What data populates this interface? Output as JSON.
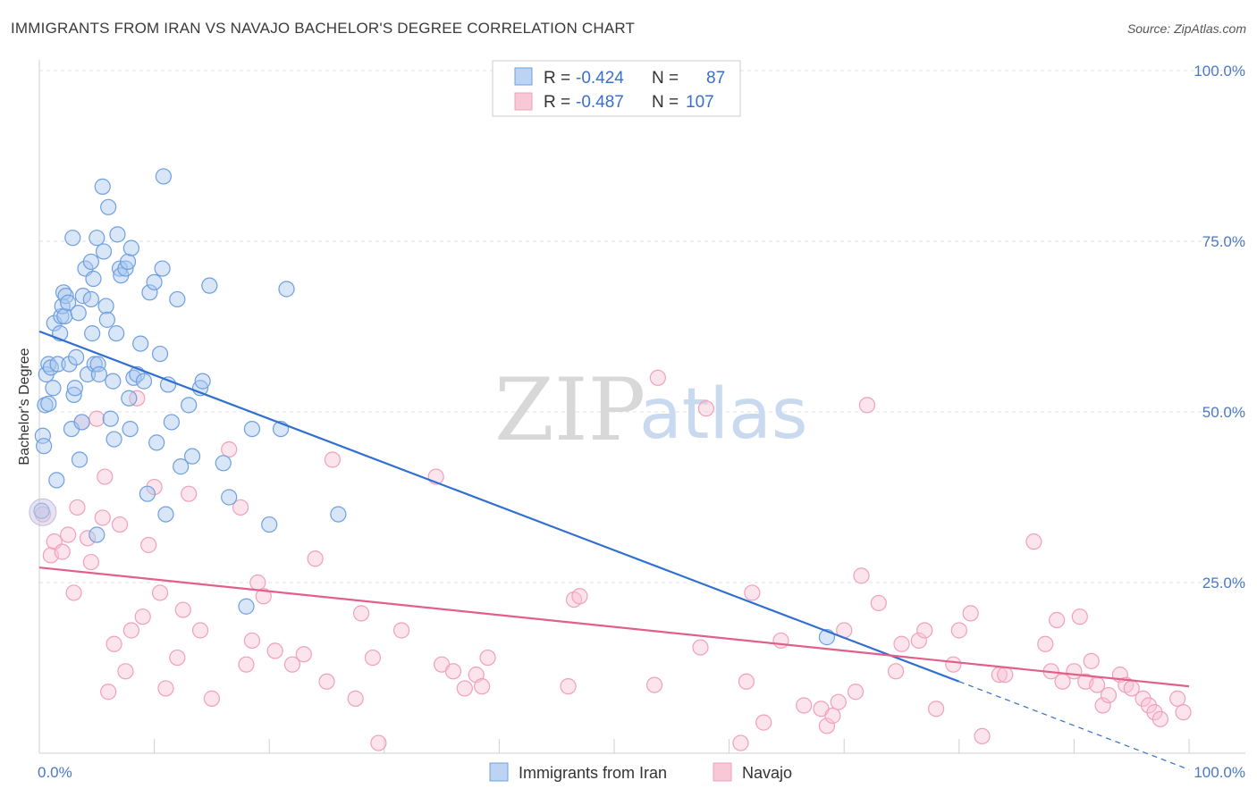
{
  "header": {
    "title": "IMMIGRANTS FROM IRAN VS NAVAJO BACHELOR'S DEGREE CORRELATION CHART",
    "source": "Source: ZipAtlas.com"
  },
  "watermark": {
    "zip": "ZIP",
    "atlas": "atlas"
  },
  "legend": {
    "rows": [
      {
        "r_label": "R =",
        "r_value": "-0.424",
        "n_label": "N =",
        "n_value": "87"
      },
      {
        "r_label": "R =",
        "r_value": "-0.487",
        "n_label": "N =",
        "n_value": "107"
      }
    ]
  },
  "chart_data": {
    "type": "scatter",
    "title": "IMMIGRANTS FROM IRAN VS NAVAJO BACHELOR'S DEGREE CORRELATION CHART",
    "xlabel": "",
    "ylabel": "Bachelor's Degree",
    "xlim": [
      0,
      100
    ],
    "ylim": [
      0,
      100
    ],
    "x_tick_labels": [
      "0.0%",
      "100.0%"
    ],
    "y_tick_labels": [
      "25.0%",
      "50.0%",
      "75.0%",
      "100.0%"
    ],
    "y_ticks": [
      25,
      50,
      75,
      100
    ],
    "grid": true,
    "legend_position": "top-center",
    "series": [
      {
        "name": "Immigrants from Iran",
        "color": "#6e9fe0",
        "line_color": "#2f6fd1",
        "r": -0.424,
        "n": 87,
        "trend": {
          "x": [
            0,
            80
          ],
          "y": [
            61.8,
            10.5
          ],
          "dash_x_end": 100,
          "dash_y_end": -2.4
        },
        "points": [
          [
            0.2,
            35.5
          ],
          [
            0.3,
            46.5
          ],
          [
            0.4,
            45.0
          ],
          [
            0.5,
            51.0
          ],
          [
            0.6,
            55.5
          ],
          [
            0.8,
            57.0
          ],
          [
            0.8,
            51.2
          ],
          [
            1.0,
            56.5
          ],
          [
            1.2,
            53.5
          ],
          [
            1.3,
            63.0
          ],
          [
            1.5,
            40.0
          ],
          [
            1.6,
            57.0
          ],
          [
            1.8,
            61.5
          ],
          [
            1.9,
            64.0
          ],
          [
            2.0,
            65.5
          ],
          [
            2.1,
            67.5
          ],
          [
            2.2,
            64.0
          ],
          [
            2.3,
            67.0
          ],
          [
            2.5,
            66.0
          ],
          [
            2.6,
            57.0
          ],
          [
            2.8,
            47.5
          ],
          [
            2.9,
            75.5
          ],
          [
            3.0,
            52.5
          ],
          [
            3.1,
            53.5
          ],
          [
            3.2,
            58.0
          ],
          [
            3.4,
            64.5
          ],
          [
            3.5,
            43.0
          ],
          [
            3.7,
            48.5
          ],
          [
            3.8,
            67.0
          ],
          [
            4.0,
            71.0
          ],
          [
            4.2,
            55.5
          ],
          [
            4.5,
            72.0
          ],
          [
            4.5,
            66.5
          ],
          [
            4.6,
            61.5
          ],
          [
            4.7,
            69.5
          ],
          [
            4.8,
            57.0
          ],
          [
            5.0,
            75.5
          ],
          [
            5.1,
            57.0
          ],
          [
            5.2,
            55.5
          ],
          [
            5.5,
            83.0
          ],
          [
            5.6,
            73.5
          ],
          [
            5.8,
            65.5
          ],
          [
            5.9,
            63.5
          ],
          [
            6.0,
            80.0
          ],
          [
            6.2,
            49.0
          ],
          [
            6.4,
            54.5
          ],
          [
            6.5,
            46.0
          ],
          [
            6.7,
            61.5
          ],
          [
            6.8,
            76.0
          ],
          [
            7.0,
            71.0
          ],
          [
            7.1,
            70.0
          ],
          [
            7.5,
            71.0
          ],
          [
            7.7,
            72.0
          ],
          [
            7.8,
            52.0
          ],
          [
            7.9,
            47.5
          ],
          [
            8.0,
            74.0
          ],
          [
            8.2,
            55.0
          ],
          [
            8.5,
            55.5
          ],
          [
            8.8,
            60.0
          ],
          [
            9.1,
            54.5
          ],
          [
            9.4,
            38.0
          ],
          [
            9.6,
            67.5
          ],
          [
            10.0,
            69.0
          ],
          [
            10.2,
            45.5
          ],
          [
            10.5,
            58.5
          ],
          [
            10.7,
            71.0
          ],
          [
            10.8,
            84.5
          ],
          [
            11.0,
            35.0
          ],
          [
            11.2,
            54.0
          ],
          [
            11.5,
            48.5
          ],
          [
            12.0,
            66.5
          ],
          [
            12.3,
            42.0
          ],
          [
            13.0,
            51.0
          ],
          [
            13.3,
            43.5
          ],
          [
            14.0,
            53.5
          ],
          [
            14.2,
            54.5
          ],
          [
            14.8,
            68.5
          ],
          [
            16.0,
            42.5
          ],
          [
            16.5,
            37.5
          ],
          [
            18.0,
            21.5
          ],
          [
            18.5,
            47.5
          ],
          [
            20.0,
            33.5
          ],
          [
            21.0,
            47.5
          ],
          [
            21.5,
            68.0
          ],
          [
            26.0,
            35.0
          ],
          [
            68.5,
            17.0
          ],
          [
            5.0,
            32.0
          ]
        ]
      },
      {
        "name": "Navajo",
        "color": "#f0a0b8",
        "line_color": "#e0608a",
        "r": -0.487,
        "n": 107,
        "trend": {
          "x": [
            0,
            100
          ],
          "y": [
            27.2,
            9.8
          ]
        },
        "points": [
          [
            0.3,
            35.0
          ],
          [
            1.0,
            29.0
          ],
          [
            1.3,
            31.0
          ],
          [
            2.0,
            29.5
          ],
          [
            2.5,
            32.0
          ],
          [
            3.0,
            23.5
          ],
          [
            3.3,
            36.0
          ],
          [
            3.7,
            48.5
          ],
          [
            4.2,
            31.5
          ],
          [
            4.5,
            28.0
          ],
          [
            5.0,
            49.0
          ],
          [
            5.5,
            34.5
          ],
          [
            5.7,
            40.5
          ],
          [
            6.0,
            9.0
          ],
          [
            6.5,
            16.0
          ],
          [
            7.0,
            33.5
          ],
          [
            7.5,
            12.0
          ],
          [
            8.0,
            18.0
          ],
          [
            8.5,
            52.0
          ],
          [
            9.0,
            20.0
          ],
          [
            9.5,
            30.5
          ],
          [
            10.0,
            39.0
          ],
          [
            10.5,
            23.5
          ],
          [
            11.0,
            9.5
          ],
          [
            12.0,
            14.0
          ],
          [
            12.5,
            21.0
          ],
          [
            13.0,
            38.0
          ],
          [
            14.0,
            18.0
          ],
          [
            15.0,
            8.0
          ],
          [
            16.5,
            44.5
          ],
          [
            17.5,
            36.0
          ],
          [
            18.0,
            13.0
          ],
          [
            18.5,
            16.5
          ],
          [
            19.0,
            25.0
          ],
          [
            19.5,
            23.0
          ],
          [
            20.5,
            15.0
          ],
          [
            22.0,
            13.0
          ],
          [
            23.0,
            14.5
          ],
          [
            24.0,
            28.5
          ],
          [
            25.0,
            10.5
          ],
          [
            25.5,
            43.0
          ],
          [
            27.5,
            8.0
          ],
          [
            28.0,
            20.5
          ],
          [
            29.0,
            14.0
          ],
          [
            29.5,
            1.5
          ],
          [
            31.5,
            18.0
          ],
          [
            34.5,
            40.5
          ],
          [
            35.0,
            13.0
          ],
          [
            36.0,
            12.0
          ],
          [
            37.0,
            9.5
          ],
          [
            38.0,
            11.5
          ],
          [
            38.5,
            9.8
          ],
          [
            39.0,
            14.0
          ],
          [
            46.0,
            9.8
          ],
          [
            46.5,
            22.5
          ],
          [
            47.0,
            23.0
          ],
          [
            53.5,
            10.0
          ],
          [
            53.8,
            55.0
          ],
          [
            57.5,
            15.5
          ],
          [
            58.0,
            50.5
          ],
          [
            61.0,
            1.5
          ],
          [
            61.5,
            10.5
          ],
          [
            62.0,
            23.5
          ],
          [
            63.0,
            4.5
          ],
          [
            64.5,
            16.5
          ],
          [
            66.5,
            7.0
          ],
          [
            68.0,
            6.5
          ],
          [
            68.5,
            4.0
          ],
          [
            69.0,
            5.5
          ],
          [
            69.5,
            7.5
          ],
          [
            70.0,
            18.0
          ],
          [
            71.0,
            9.0
          ],
          [
            71.5,
            26.0
          ],
          [
            72.0,
            51.0
          ],
          [
            73.0,
            22.0
          ],
          [
            74.5,
            12.0
          ],
          [
            75.0,
            16.0
          ],
          [
            76.5,
            16.5
          ],
          [
            77.0,
            18.0
          ],
          [
            78.0,
            6.5
          ],
          [
            79.5,
            13.0
          ],
          [
            80.0,
            18.0
          ],
          [
            81.0,
            20.5
          ],
          [
            82.0,
            2.5
          ],
          [
            83.5,
            11.5
          ],
          [
            84.0,
            11.5
          ],
          [
            86.5,
            31.0
          ],
          [
            87.5,
            16.0
          ],
          [
            88.0,
            12.0
          ],
          [
            88.5,
            19.5
          ],
          [
            89.0,
            10.5
          ],
          [
            90.0,
            12.0
          ],
          [
            90.5,
            20.0
          ],
          [
            91.0,
            10.5
          ],
          [
            91.5,
            13.5
          ],
          [
            92.0,
            10.0
          ],
          [
            92.5,
            7.0
          ],
          [
            93.0,
            8.5
          ],
          [
            94.0,
            11.5
          ],
          [
            94.5,
            10.0
          ],
          [
            95.0,
            9.5
          ],
          [
            96.0,
            8.0
          ],
          [
            96.5,
            7.0
          ],
          [
            97.0,
            6.0
          ],
          [
            97.5,
            5.0
          ],
          [
            99.0,
            8.0
          ],
          [
            99.5,
            6.0
          ]
        ]
      }
    ]
  }
}
